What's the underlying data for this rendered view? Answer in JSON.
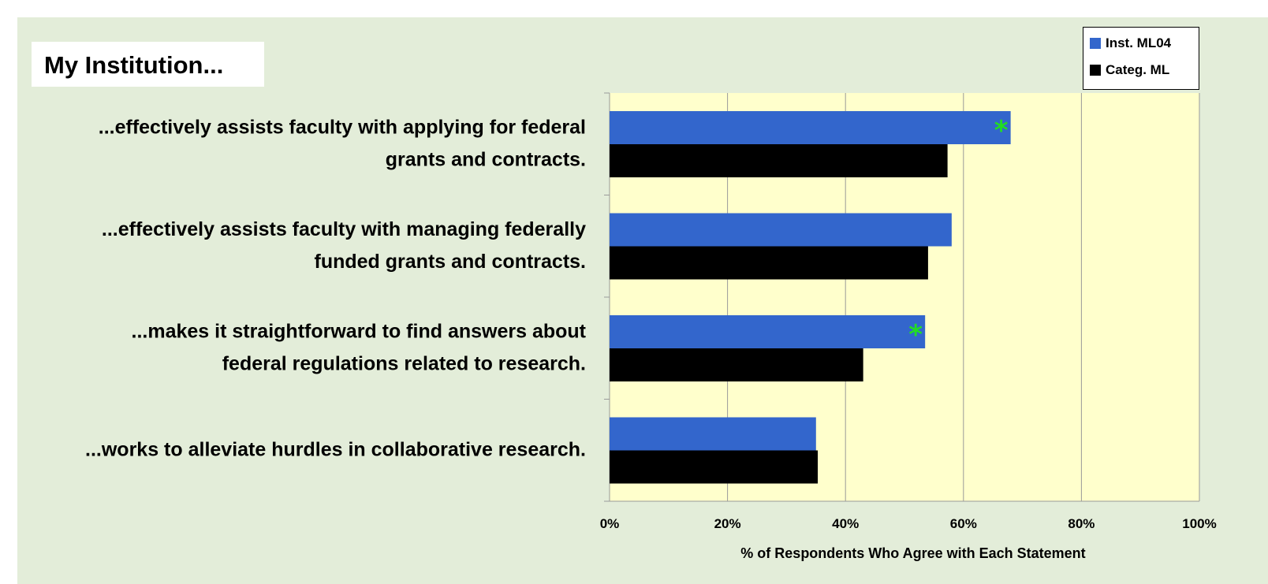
{
  "colors": {
    "panel_bg": "#e3edd9",
    "plot_bg": "#ffffcc",
    "inst_series": "#3366cc",
    "categ_series": "#000000",
    "marker": "#22dd22"
  },
  "title": "My Institution...",
  "legend": {
    "items": [
      {
        "label": "Inst. ML04",
        "color": "#3366cc"
      },
      {
        "label": "Categ. ML",
        "color": "#000000"
      }
    ]
  },
  "chart_data": {
    "type": "bar",
    "orientation": "horizontal",
    "categories": [
      [
        "...effectively assists faculty with applying for federal",
        "grants and contracts."
      ],
      [
        "...effectively assists faculty with managing federally",
        "funded grants and contracts."
      ],
      [
        "...makes it straightforward to find answers about",
        "federal regulations related to research."
      ],
      [
        "...works to alleviate hurdles in collaborative research."
      ]
    ],
    "series": [
      {
        "name": "Inst. ML04",
        "values": [
          68,
          58,
          53.5,
          35
        ],
        "significant": [
          true,
          false,
          true,
          false
        ],
        "marker": "*"
      },
      {
        "name": "Categ. ML",
        "values": [
          57.3,
          54,
          43,
          35.3
        ]
      }
    ],
    "xlim": [
      0,
      100
    ],
    "xticks": [
      "0%",
      "20%",
      "40%",
      "60%",
      "80%",
      "100%"
    ],
    "xlabel": "% of Respondents Who Agree with Each Statement",
    "grid": true,
    "legend_position": "top-right"
  }
}
